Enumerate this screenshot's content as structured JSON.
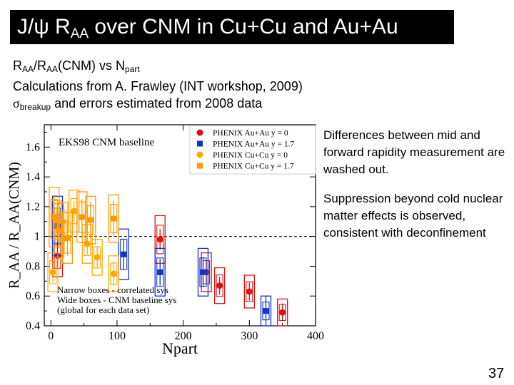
{
  "slide": {
    "title_main": "J/ψ R",
    "title_sub": "AA",
    "title_rest": " over CNM in Cu+Cu and Au+Au",
    "line1_a": "R",
    "line1_b": "AA",
    "line1_c": "/R",
    "line1_d": "AA",
    "line1_e": "(CNM) vs N",
    "line1_f": "part",
    "line2": "Calculations from A. Frawley (INT workshop, 2009)",
    "line3_sigma": "σ",
    "line3_sub": "breakup",
    "line3_rest": " and errors estimated from 2008 data",
    "note1": "Differences between mid and forward rapidity measurement are washed out.",
    "note2": "Suppression beyond cold nuclear matter effects is observed, consistent with deconfinement",
    "page_number": "37"
  },
  "chart_data": {
    "type": "scatter",
    "title": "EKS98 CNM baseline",
    "xlabel": "Npart",
    "ylabel": "R_AA / R_AA(CNM)",
    "xlim": [
      -10,
      400
    ],
    "ylim": [
      0.4,
      1.75
    ],
    "x_ticks": [
      "0",
      "100",
      "200",
      "300",
      "400"
    ],
    "y_ticks": [
      "0.4",
      "0.6",
      "0.8",
      "1",
      "1.2",
      "1.4",
      "1.6"
    ],
    "reference_line": 1,
    "annotation_lines": [
      "Narrow boxes - correlated sys",
      "Wide boxes - CNM baseline sys",
      "(global for each data set)"
    ],
    "legend_position": "top-right",
    "series": [
      {
        "name": "PHENIX Au+Au y = 0",
        "color": "#dd1111",
        "marker": "circle",
        "points": [
          {
            "x": 10,
            "y": 0.87,
            "err": 0.08,
            "sys": 0.14
          },
          {
            "x": 165,
            "y": 0.98,
            "err": 0.07,
            "sys": 0.16
          },
          {
            "x": 235,
            "y": 0.76,
            "err": 0.07,
            "sys": 0.13
          },
          {
            "x": 255,
            "y": 0.67,
            "err": 0.06,
            "sys": 0.12
          },
          {
            "x": 300,
            "y": 0.63,
            "err": 0.06,
            "sys": 0.11
          },
          {
            "x": 350,
            "y": 0.49,
            "err": 0.06,
            "sys": 0.09
          }
        ]
      },
      {
        "name": "PHENIX Au+Au y = 1.7",
        "color": "#1133cc",
        "marker": "square",
        "points": [
          {
            "x": 10,
            "y": 1.07,
            "err": 0.15,
            "sys": 0.2
          },
          {
            "x": 110,
            "y": 0.88,
            "err": 0.1,
            "sys": 0.17
          },
          {
            "x": 165,
            "y": 0.76,
            "err": 0.09,
            "sys": 0.16
          },
          {
            "x": 230,
            "y": 0.76,
            "err": 0.1,
            "sys": 0.16
          },
          {
            "x": 325,
            "y": 0.5,
            "err": 0.1,
            "sys": 0.1
          }
        ]
      },
      {
        "name": "PHENIX Cu+Cu y = 0",
        "color": "#ffaa00",
        "marker": "circle",
        "points": [
          {
            "x": 3,
            "y": 0.76,
            "err": 0.07,
            "sys": 0.13
          },
          {
            "x": 8,
            "y": 1.11,
            "err": 0.07,
            "sys": 0.13
          },
          {
            "x": 18,
            "y": 1.1,
            "err": 0.07,
            "sys": 0.13
          },
          {
            "x": 35,
            "y": 1.17,
            "err": 0.07,
            "sys": 0.14
          },
          {
            "x": 55,
            "y": 0.95,
            "err": 0.07,
            "sys": 0.13
          },
          {
            "x": 70,
            "y": 0.86,
            "err": 0.07,
            "sys": 0.12
          },
          {
            "x": 95,
            "y": 0.75,
            "err": 0.08,
            "sys": 0.12
          }
        ]
      },
      {
        "name": "PHENIX Cu+Cu y = 1.7",
        "color": "#ff9900",
        "marker": "square",
        "points": [
          {
            "x": 5,
            "y": 1.13,
            "err": 0.15,
            "sys": 0.2
          },
          {
            "x": 12,
            "y": 1.04,
            "err": 0.12,
            "sys": 0.18
          },
          {
            "x": 25,
            "y": 0.99,
            "err": 0.12,
            "sys": 0.17
          },
          {
            "x": 47,
            "y": 1.13,
            "err": 0.12,
            "sys": 0.17
          },
          {
            "x": 60,
            "y": 1.11,
            "err": 0.12,
            "sys": 0.16
          },
          {
            "x": 95,
            "y": 1.12,
            "err": 0.12,
            "sys": 0.16
          }
        ]
      }
    ]
  }
}
